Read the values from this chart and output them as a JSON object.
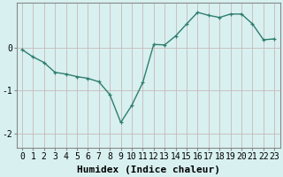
{
  "x": [
    0,
    1,
    2,
    3,
    4,
    5,
    6,
    7,
    8,
    9,
    10,
    11,
    12,
    13,
    14,
    15,
    16,
    17,
    18,
    19,
    20,
    21,
    22,
    23
  ],
  "y": [
    -0.05,
    -0.22,
    -0.35,
    -0.58,
    -0.62,
    -0.68,
    -0.72,
    -0.8,
    -1.1,
    -1.75,
    -1.35,
    -0.82,
    0.07,
    0.06,
    0.27,
    0.55,
    0.82,
    0.75,
    0.7,
    0.78,
    0.78,
    0.55,
    0.18,
    0.2
  ],
  "line_color": "#2e7d6e",
  "marker": "+",
  "markersize": 3.5,
  "linewidth": 1.0,
  "bg_color": "#d8f0f0",
  "grid_color_v": "#c8b8b8",
  "grid_color_h": "#c8b8b8",
  "xlabel": "Humidex (Indice chaleur)",
  "xlabel_fontsize": 8,
  "yticks": [
    -2,
    -1,
    0
  ],
  "ylim": [
    -2.35,
    1.05
  ],
  "xlim": [
    -0.5,
    23.5
  ],
  "tick_fontsize": 7,
  "figure_bg": "#d8f0f0",
  "spine_color": "#888888"
}
